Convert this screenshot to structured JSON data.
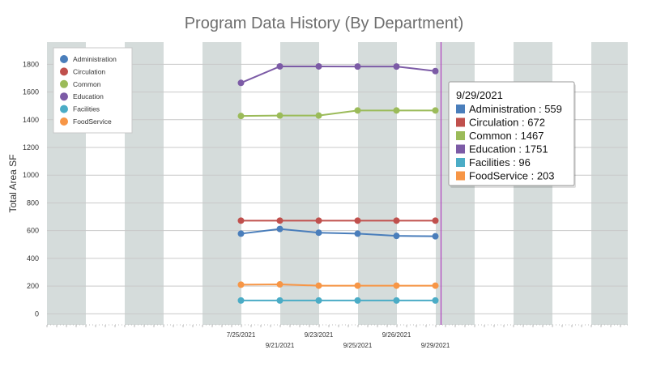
{
  "chart_data": {
    "type": "line",
    "title": "Program Data History (By Department)",
    "ylabel": "Total Area SF",
    "xlabel": "",
    "ylim": [
      -80,
      1960
    ],
    "yticks": [
      0,
      200,
      400,
      600,
      800,
      1000,
      1200,
      1400,
      1600,
      1800
    ],
    "categories": [
      "7/25/2021",
      "9/21/2021",
      "9/23/2021",
      "9/25/2021",
      "9/26/2021",
      "9/29/2021"
    ],
    "grid": true,
    "legend_position": "top-left",
    "series": [
      {
        "name": "Administration",
        "color": "#4a7ebb",
        "values": [
          578,
          612,
          585,
          578,
          562,
          559
        ]
      },
      {
        "name": "Circulation",
        "color": "#c0504d",
        "values": [
          672,
          672,
          672,
          672,
          672,
          672
        ]
      },
      {
        "name": "Common",
        "color": "#9bbb59",
        "values": [
          1427,
          1430,
          1430,
          1467,
          1467,
          1467
        ]
      },
      {
        "name": "Education",
        "color": "#7c5ba6",
        "values": [
          1666,
          1785,
          1785,
          1784,
          1784,
          1751
        ]
      },
      {
        "name": "Facilities",
        "color": "#4bacc6",
        "values": [
          96,
          96,
          96,
          96,
          96,
          96
        ]
      },
      {
        "name": "FoodService",
        "color": "#f79646",
        "values": [
          210,
          212,
          203,
          203,
          203,
          203
        ]
      }
    ],
    "tooltip": {
      "date": "9/29/2021",
      "rows": [
        "Administration : 559",
        "Circulation : 672",
        "Common : 1467",
        "Education : 1751",
        "Facilities : 96",
        "FoodService : 203"
      ]
    }
  }
}
